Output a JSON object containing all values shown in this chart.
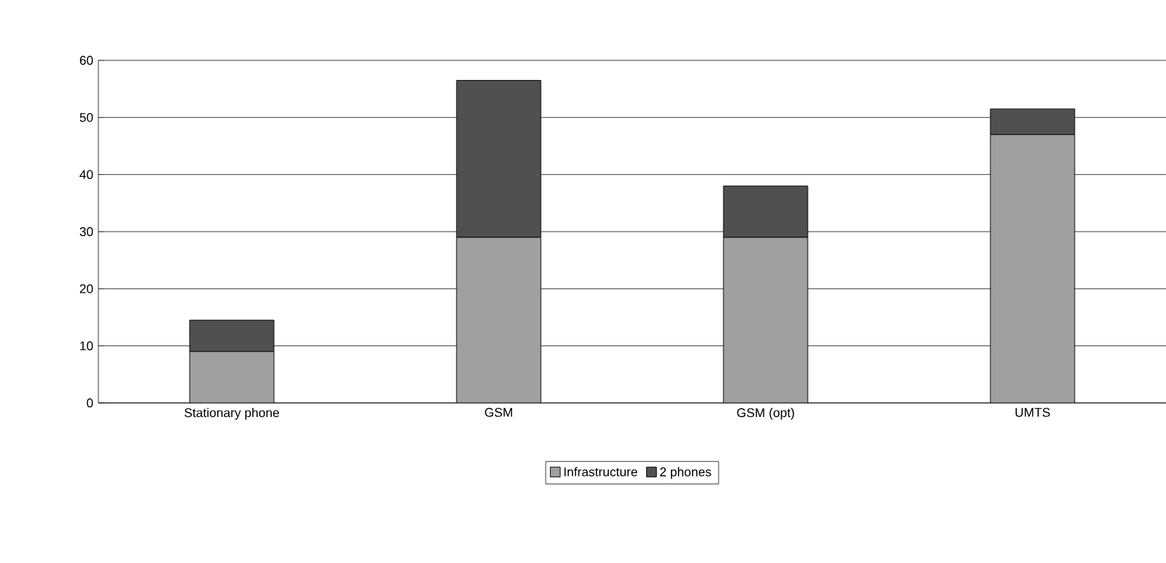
{
  "chart_data": {
    "type": "bar",
    "stacked": true,
    "categories": [
      "Stationary phone",
      "GSM",
      "GSM (opt)",
      "UMTS"
    ],
    "series": [
      {
        "name": "Infrastructure",
        "color": "#a0a0a0",
        "values": [
          9,
          29,
          29,
          47
        ]
      },
      {
        "name": "2 phones",
        "color": "#505050",
        "values": [
          5.5,
          27.5,
          9,
          4.5
        ]
      }
    ],
    "ylim": [
      0,
      60
    ],
    "yticks": [
      0,
      10,
      20,
      30,
      40,
      50,
      60
    ],
    "grid": "y",
    "legend": "bottom"
  }
}
